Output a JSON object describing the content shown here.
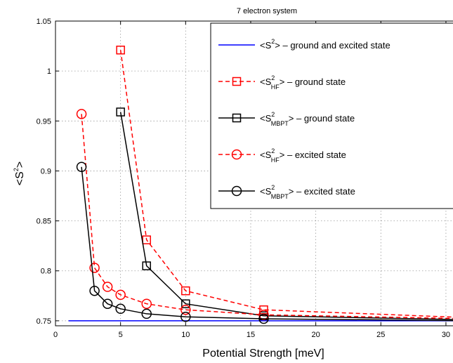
{
  "chart_data": {
    "type": "line",
    "title": "7 electron system",
    "xlabel": "Potential Strength [meV]",
    "ylabel": {
      "prefix": "<S",
      "sup": "2",
      "suffix": ">"
    },
    "xlim": [
      0,
      32
    ],
    "ylim": [
      0.745,
      1.05
    ],
    "xticks": [
      0,
      5,
      10,
      15,
      20,
      25,
      30
    ],
    "yticks": [
      0.75,
      0.8,
      0.85,
      0.9,
      0.95,
      1.0,
      1.05
    ],
    "xtick_labels": [
      "0",
      "5",
      "10",
      "15",
      "20",
      "25",
      "30"
    ],
    "ytick_labels": [
      "0.75",
      "0.8",
      "0.85",
      "0.9",
      "0.95",
      "1",
      "1.05"
    ],
    "grid": true,
    "legend_position": "top-right",
    "series": [
      {
        "legend": {
          "prefix": "<S",
          "sup": "2",
          "sub": "",
          "suffix": "> – ground and excited state"
        },
        "color": "#0000ff",
        "dash": "solid",
        "marker": "none",
        "x": [
          1,
          32
        ],
        "y": [
          0.75,
          0.75
        ]
      },
      {
        "legend": {
          "prefix": "<S",
          "sup": "2",
          "sub": "HF",
          "suffix": "> – ground state"
        },
        "color": "#ff0000",
        "dash": "dashed",
        "marker": "square",
        "x": [
          5,
          7,
          10,
          16,
          32
        ],
        "y": [
          1.021,
          0.831,
          0.78,
          0.761,
          0.753
        ]
      },
      {
        "legend": {
          "prefix": "<S",
          "sup": "2",
          "sub": "MBPT",
          "suffix": "> – ground state"
        },
        "color": "#000000",
        "dash": "solid",
        "marker": "square",
        "x": [
          5,
          7,
          10,
          16,
          32
        ],
        "y": [
          0.959,
          0.805,
          0.767,
          0.755,
          0.751
        ]
      },
      {
        "legend": {
          "prefix": "<S",
          "sup": "2",
          "sub": "HF",
          "suffix": "> – excited state"
        },
        "color": "#ff0000",
        "dash": "dashed",
        "marker": "circle",
        "x": [
          2,
          3,
          4,
          5,
          7,
          10,
          16,
          32
        ],
        "y": [
          0.957,
          0.803,
          0.784,
          0.776,
          0.767,
          0.761,
          0.756,
          0.752
        ]
      },
      {
        "legend": {
          "prefix": "<S",
          "sup": "2",
          "sub": "MBPT",
          "suffix": "> – excited state"
        },
        "color": "#000000",
        "dash": "solid",
        "marker": "circle",
        "x": [
          2,
          3,
          4,
          5,
          7,
          10,
          16,
          32
        ],
        "y": [
          0.904,
          0.78,
          0.767,
          0.762,
          0.757,
          0.754,
          0.752,
          0.75
        ]
      }
    ]
  }
}
